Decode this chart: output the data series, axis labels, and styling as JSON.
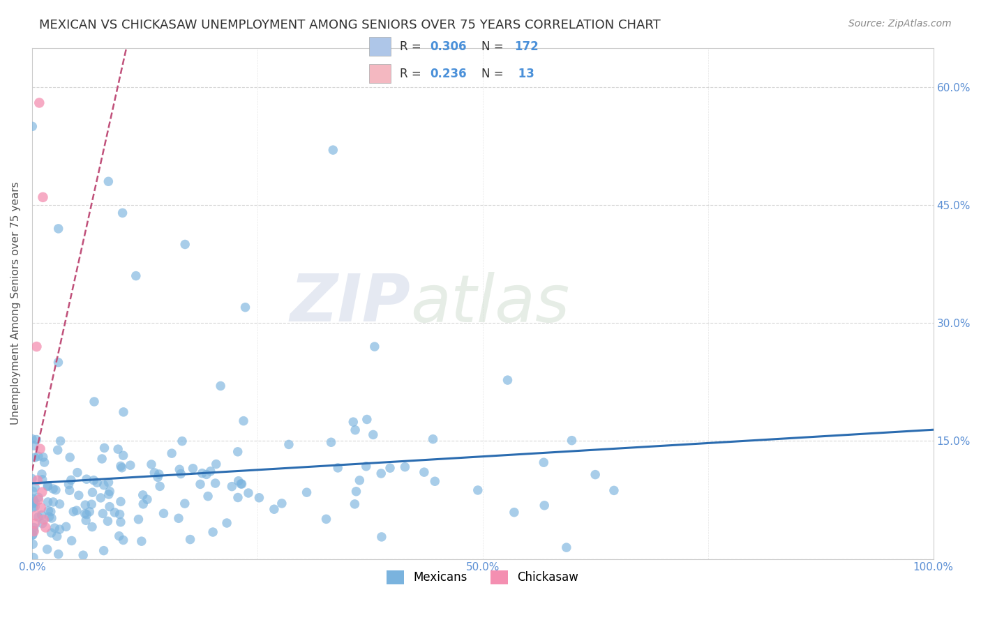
{
  "title": "MEXICAN VS CHICKASAW UNEMPLOYMENT AMONG SENIORS OVER 75 YEARS CORRELATION CHART",
  "source_text": "Source: ZipAtlas.com",
  "ylabel": "Unemployment Among Seniors over 75 years",
  "xlim": [
    0,
    1.0
  ],
  "ylim": [
    0,
    0.65
  ],
  "xticks": [
    0.0,
    0.25,
    0.5,
    0.75,
    1.0
  ],
  "xtick_labels": [
    "0.0%",
    "",
    "50.0%",
    "",
    "100.0%"
  ],
  "yticks": [
    0.0,
    0.15,
    0.3,
    0.45,
    0.6
  ],
  "ytick_labels_right": [
    "",
    "15.0%",
    "30.0%",
    "45.0%",
    "60.0%"
  ],
  "legend_entries": [
    {
      "label": "Mexicans",
      "color": "#aec6e8",
      "R": "0.306",
      "N": "172"
    },
    {
      "label": "Chickasaw",
      "color": "#f4b8c1",
      "R": "0.236",
      "N": " 13"
    }
  ],
  "blue_scatter_color": "#7ab3de",
  "pink_scatter_color": "#f48fb1",
  "blue_line_color": "#2b6cb0",
  "pink_line_color": "#c0507a",
  "watermark_zip": "ZIP",
  "watermark_atlas": "atlas",
  "title_color": "#333333",
  "title_fontsize": 13,
  "axis_label_color": "#555555",
  "tick_label_color": "#5b8fd4",
  "grid_color": "#cccccc",
  "legend_box_color": "#cccccc",
  "source_color": "#888888"
}
